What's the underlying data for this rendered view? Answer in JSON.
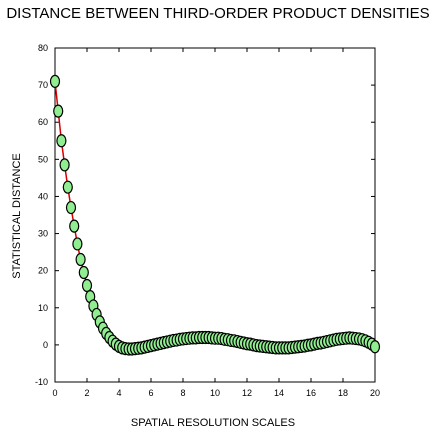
{
  "chart_data": {
    "type": "line",
    "title": "DISTANCE BETWEEN THIRD-ORDER PRODUCT DENSITIES",
    "xlabel": "SPATIAL RESOLUTION SCALES",
    "ylabel": "STATISTICAL DISTANCE",
    "xlim": [
      0,
      20
    ],
    "ylim": [
      -10,
      80
    ],
    "xticks": [
      0,
      2,
      4,
      6,
      8,
      10,
      12,
      14,
      16,
      18,
      20
    ],
    "yticks": [
      -10,
      0,
      10,
      20,
      30,
      40,
      50,
      60,
      70,
      80
    ],
    "grid": false,
    "line_color": "#d40000",
    "marker_fill": "#90ee90",
    "marker_edge": "#000000",
    "series": [
      {
        "x": [
          0,
          0.2,
          0.4,
          0.6,
          0.8,
          1,
          1.2,
          1.4,
          1.6,
          1.8,
          2,
          2.2,
          2.4,
          2.6,
          2.8,
          3,
          3.2,
          3.4,
          3.6,
          3.8,
          4,
          4.2,
          4.4,
          4.6,
          4.8,
          5,
          5.2,
          5.4,
          5.6,
          5.8,
          6,
          6.2,
          6.4,
          6.6,
          6.8,
          7,
          7.2,
          7.4,
          7.6,
          7.8,
          8,
          8.2,
          8.4,
          8.6,
          8.8,
          9,
          9.2,
          9.4,
          9.6,
          9.8,
          10,
          10.2,
          10.4,
          10.6,
          10.8,
          11,
          11.2,
          11.4,
          11.6,
          11.8,
          12,
          12.2,
          12.4,
          12.6,
          12.8,
          13,
          13.2,
          13.4,
          13.6,
          13.8,
          14,
          14.2,
          14.4,
          14.6,
          14.8,
          15,
          15.2,
          15.4,
          15.6,
          15.8,
          16,
          16.2,
          16.4,
          16.6,
          16.8,
          17,
          17.2,
          17.4,
          17.6,
          17.8,
          18,
          18.2,
          18.4,
          18.6,
          18.8,
          19,
          19.2,
          19.4,
          19.6,
          19.8,
          20
        ],
        "y": [
          71,
          63,
          55,
          48.5,
          42.5,
          37,
          32,
          27.2,
          23,
          19.5,
          16,
          13,
          10.5,
          8.2,
          6.2,
          4.5,
          3.1,
          2,
          1,
          0.2,
          -0.4,
          -0.8,
          -1,
          -1.1,
          -1.1,
          -1,
          -0.9,
          -0.8,
          -0.6,
          -0.4,
          -0.2,
          0,
          0.2,
          0.4,
          0.6,
          0.8,
          1,
          1.2,
          1.3,
          1.5,
          1.6,
          1.7,
          1.8,
          1.9,
          1.9,
          2,
          2,
          2,
          2,
          1.9,
          1.8,
          1.8,
          1.7,
          1.5,
          1.4,
          1.2,
          1.1,
          0.9,
          0.7,
          0.5,
          0.3,
          0.2,
          0,
          -0.2,
          -0.3,
          -0.4,
          -0.5,
          -0.6,
          -0.7,
          -0.8,
          -0.8,
          -0.8,
          -0.8,
          -0.8,
          -0.7,
          -0.6,
          -0.5,
          -0.4,
          -0.3,
          -0.1,
          0,
          0.2,
          0.4,
          0.5,
          0.7,
          0.9,
          1.1,
          1.3,
          1.5,
          1.6,
          1.7,
          1.8,
          1.9,
          1.8,
          1.7,
          1.6,
          1.4,
          1.1,
          0.7,
          0.2,
          -0.5
        ]
      }
    ]
  }
}
